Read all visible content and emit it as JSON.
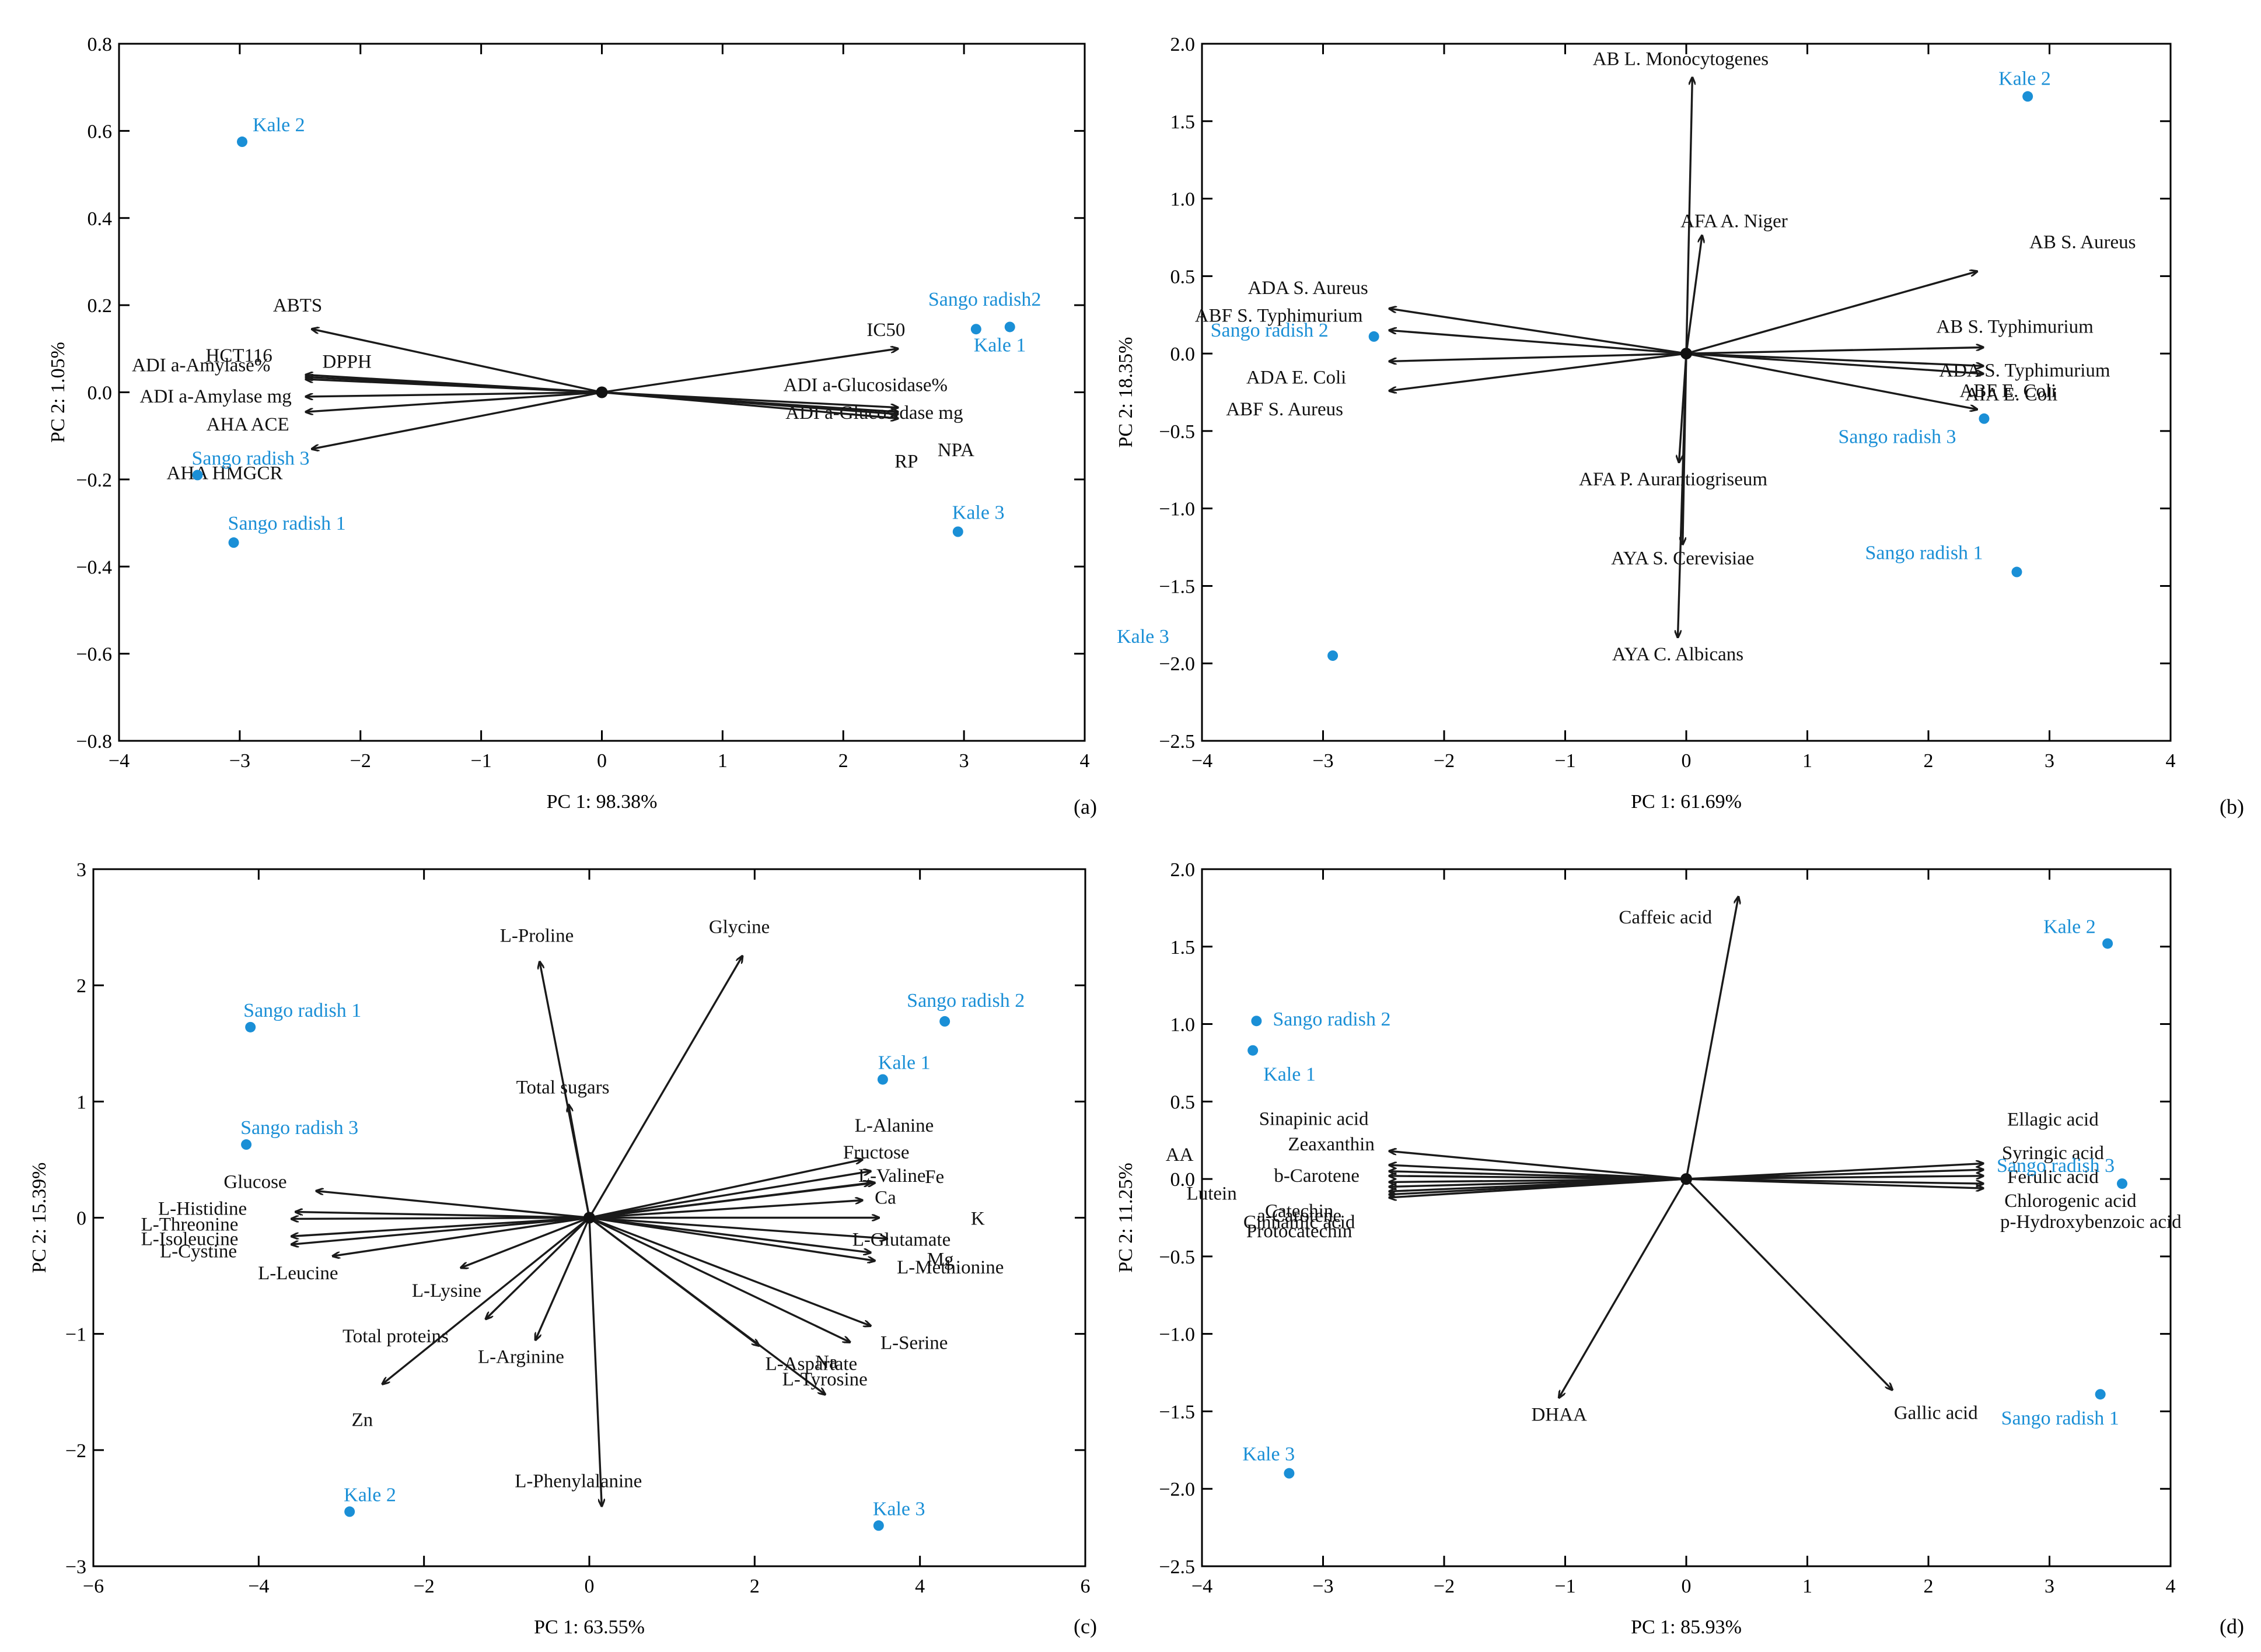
{
  "chart_data": [
    {
      "panel": "(a)",
      "type": "scatter",
      "xlabel": "PC 1: 98.38%",
      "ylabel": "PC 2: 1.05%",
      "xlim": [
        -4,
        4
      ],
      "ylim": [
        -0.8,
        0.8
      ],
      "xticks": [
        -4,
        -3,
        -2,
        -1,
        0,
        1,
        2,
        3,
        4
      ],
      "yticks": [
        -0.8,
        -0.6,
        -0.4,
        -0.2,
        0.0,
        0.2,
        0.4,
        0.6,
        0.8
      ],
      "xtick_labels": [
        "−4",
        "−3",
        "−2",
        "−1",
        "0",
        "1",
        "2",
        "3",
        "4"
      ],
      "ytick_labels": [
        "−0.8",
        "−0.6",
        "−0.4",
        "−0.2",
        "0.0",
        "0.2",
        "0.4",
        "0.6",
        "0.8"
      ],
      "points": [
        {
          "label": "Kale 2",
          "x": -2.98,
          "y": 0.575
        },
        {
          "label": "Sango radish2",
          "x": 3.1,
          "y": 0.145
        },
        {
          "label": "Kale 1",
          "x": 3.38,
          "y": 0.15
        },
        {
          "label": "Sango radish 3",
          "x": -3.35,
          "y": -0.19
        },
        {
          "label": "Sango radish 1",
          "x": -3.05,
          "y": -0.345
        },
        {
          "label": "Kale 3",
          "x": 2.95,
          "y": -0.32
        }
      ],
      "vectors": [
        {
          "label": "ABTS",
          "x": -2.4,
          "y": 0.145
        },
        {
          "label": "DPPH",
          "x": -2.45,
          "y": 0.04
        },
        {
          "label": "ADI a-Amylase%",
          "x": -2.45,
          "y": 0.035
        },
        {
          "label": "HCT116",
          "x": -2.45,
          "y": 0.03
        },
        {
          "label": "ADI a-Amylase mg",
          "x": -2.45,
          "y": -0.01
        },
        {
          "label": "AHA ACE",
          "x": -2.45,
          "y": -0.045
        },
        {
          "label": "AHA HMGCR",
          "x": -2.4,
          "y": -0.13
        },
        {
          "label": "IC50",
          "x": 2.45,
          "y": 0.1
        },
        {
          "label": "ADI a-Glucosidase%",
          "x": 2.45,
          "y": -0.035
        },
        {
          "label": "ADI a-Glucosidase mg",
          "x": 2.45,
          "y": -0.045
        },
        {
          "label": "RP",
          "x": 2.45,
          "y": -0.06
        },
        {
          "label": "NPA",
          "x": 2.45,
          "y": -0.05
        }
      ]
    },
    {
      "panel": "(b)",
      "type": "scatter",
      "xlabel": "PC 1: 61.69%",
      "ylabel": "PC 2: 18.35%",
      "xlim": [
        -4,
        4
      ],
      "ylim": [
        -2.5,
        2.0
      ],
      "xticks": [
        -4,
        -3,
        -2,
        -1,
        0,
        1,
        2,
        3,
        4
      ],
      "yticks": [
        -2.5,
        -2.0,
        -1.5,
        -1.0,
        -0.5,
        0.0,
        0.5,
        1.0,
        1.5,
        2.0
      ],
      "xtick_labels": [
        "−4",
        "−3",
        "−2",
        "−1",
        "0",
        "1",
        "2",
        "3",
        "4"
      ],
      "ytick_labels": [
        "−2.5",
        "−2.0",
        "−1.5",
        "−1.0",
        "−0.5",
        "0.0",
        "0.5",
        "1.0",
        "1.5",
        "2.0"
      ],
      "points": [
        {
          "label": "Kale 2",
          "x": 2.82,
          "y": 1.66
        },
        {
          "label": "Sango radish 2",
          "x": -2.58,
          "y": 0.11
        },
        {
          "label": "Sango radish 3",
          "x": 2.46,
          "y": -0.42
        },
        {
          "label": "Sango radish 1",
          "x": 2.73,
          "y": -1.41
        },
        {
          "label": "Kale 3",
          "x": -2.92,
          "y": -1.95
        }
      ],
      "vectors": [
        {
          "label": "AB L. Monocytogenes",
          "x": 0.05,
          "y": 1.78
        },
        {
          "label": "AFA A. Niger",
          "x": 0.13,
          "y": 0.76
        },
        {
          "label": "AB S. Aureus",
          "x": 2.4,
          "y": 0.53
        },
        {
          "label": "ADA S. Aureus",
          "x": -2.45,
          "y": 0.29
        },
        {
          "label": "ABF S. Typhimurium",
          "x": -2.45,
          "y": 0.15
        },
        {
          "label": "ADA E. Coli",
          "x": -2.45,
          "y": -0.05
        },
        {
          "label": "ABF S. Aureus",
          "x": -2.45,
          "y": -0.24
        },
        {
          "label": "AB S. Typhimurium",
          "x": 2.45,
          "y": 0.04
        },
        {
          "label": "ADA S. Typhimurium",
          "x": 2.45,
          "y": -0.08
        },
        {
          "label": "ABF E. Coli",
          "x": 2.45,
          "y": -0.13
        },
        {
          "label": "AIA E. Coli",
          "x": 2.4,
          "y": -0.36
        },
        {
          "label": "AFA P. Aurantiogriseum",
          "x": -0.06,
          "y": -0.7
        },
        {
          "label": "AYA S. Cerevisiae",
          "x": -0.03,
          "y": -1.23
        },
        {
          "label": "AYA C. Albicans",
          "x": -0.07,
          "y": -1.83
        }
      ]
    },
    {
      "panel": "(c)",
      "type": "scatter",
      "xlabel": "PC 1: 63.55%",
      "ylabel": "PC 2: 15.39%",
      "xlim": [
        -6,
        6
      ],
      "ylim": [
        -3,
        3
      ],
      "xticks": [
        -6,
        -4,
        -2,
        0,
        2,
        4,
        6
      ],
      "yticks": [
        -3,
        -2,
        -1,
        0,
        1,
        2,
        3
      ],
      "xtick_labels": [
        "−6",
        "−4",
        "−2",
        "0",
        "2",
        "4",
        "6"
      ],
      "ytick_labels": [
        "−3",
        "−2",
        "−1",
        "0",
        "1",
        "2",
        "3"
      ],
      "points": [
        {
          "label": "Sango radish 1",
          "x": -4.1,
          "y": 1.64
        },
        {
          "label": "Sango radish 2",
          "x": 4.3,
          "y": 1.69
        },
        {
          "label": "Kale 1",
          "x": 3.55,
          "y": 1.19
        },
        {
          "label": "Sango radish 3",
          "x": -4.15,
          "y": 0.63
        },
        {
          "label": "Kale 2",
          "x": -2.9,
          "y": -2.53
        },
        {
          "label": "Kale 3",
          "x": 3.5,
          "y": -2.65
        }
      ],
      "vectors": [
        {
          "label": "L-Proline",
          "x": -0.6,
          "y": 2.2
        },
        {
          "label": "Glycine",
          "x": 1.85,
          "y": 2.25
        },
        {
          "label": "Total sugars",
          "x": -0.25,
          "y": 0.97
        },
        {
          "label": "Glucose",
          "x": -3.3,
          "y": 0.23
        },
        {
          "label": "L-Histidine",
          "x": -3.55,
          "y": 0.05
        },
        {
          "label": "L-Threonine",
          "x": -3.6,
          "y": -0.01
        },
        {
          "label": "L-Isoleucine",
          "x": -3.6,
          "y": -0.16
        },
        {
          "label": "L-Cystine",
          "x": -3.6,
          "y": -0.23
        },
        {
          "label": "L-Leucine",
          "x": -3.1,
          "y": -0.33
        },
        {
          "label": "L-Lysine",
          "x": -1.55,
          "y": -0.43
        },
        {
          "label": "Total proteins",
          "x": -1.25,
          "y": -0.87
        },
        {
          "label": "Zn",
          "x": -2.5,
          "y": -1.43
        },
        {
          "label": "L-Arginine",
          "x": -0.65,
          "y": -1.05
        },
        {
          "label": "L-Phenylalanine",
          "x": 0.15,
          "y": -2.48
        },
        {
          "label": "L-Alanine",
          "x": 3.3,
          "y": 0.5
        },
        {
          "label": "Fructose",
          "x": 3.4,
          "y": 0.4
        },
        {
          "label": "Fe",
          "x": 3.4,
          "y": 0.3
        },
        {
          "label": "L-Valine",
          "x": 3.45,
          "y": 0.3
        },
        {
          "label": "Ca",
          "x": 3.3,
          "y": 0.15
        },
        {
          "label": "K",
          "x": 3.5,
          "y": 0.0
        },
        {
          "label": "L-Glutamate",
          "x": 3.6,
          "y": -0.18
        },
        {
          "label": "Mg",
          "x": 3.4,
          "y": -0.3
        },
        {
          "label": "L-Methionine",
          "x": 3.45,
          "y": -0.37
        },
        {
          "label": "L-Serine",
          "x": 3.4,
          "y": -0.93
        },
        {
          "label": "Na",
          "x": 3.15,
          "y": -1.07
        },
        {
          "label": "L-Aspartate",
          "x": 2.05,
          "y": -1.1
        },
        {
          "label": "L-Tyrosine",
          "x": 2.85,
          "y": -1.52
        }
      ]
    },
    {
      "panel": "(d)",
      "type": "scatter",
      "xlabel": "PC 1: 85.93%",
      "ylabel": "PC 2: 11.25%",
      "xlim": [
        -4,
        4
      ],
      "ylim": [
        -2.5,
        2.0
      ],
      "xticks": [
        -4,
        -3,
        -2,
        -1,
        0,
        1,
        2,
        3,
        4
      ],
      "yticks": [
        -2.5,
        -2.0,
        -1.5,
        -1.0,
        -0.5,
        0.0,
        0.5,
        1.0,
        1.5,
        2.0
      ],
      "xtick_labels": [
        "−4",
        "−3",
        "−2",
        "−1",
        "0",
        "1",
        "2",
        "3",
        "4"
      ],
      "ytick_labels": [
        "−2.5",
        "−2.0",
        "−1.5",
        "−1.0",
        "−0.5",
        "0.0",
        "0.5",
        "1.0",
        "1.5",
        "2.0"
      ],
      "points": [
        {
          "label": "Kale 2",
          "x": 3.48,
          "y": 1.52
        },
        {
          "label": "Sango radish 2",
          "x": -3.55,
          "y": 1.02
        },
        {
          "label": "Kale 1",
          "x": -3.58,
          "y": 0.83
        },
        {
          "label": "Sango radish 3",
          "x": 3.6,
          "y": -0.03
        },
        {
          "label": "Sango radish 1",
          "x": 3.42,
          "y": -1.39
        },
        {
          "label": "Kale 3",
          "x": -3.28,
          "y": -1.9
        }
      ],
      "vectors": [
        {
          "label": "Caffeic acid",
          "x": 0.43,
          "y": 1.82
        },
        {
          "label": "Sinapinic acid",
          "x": -2.45,
          "y": 0.18
        },
        {
          "label": "Zeaxanthin",
          "x": -2.45,
          "y": 0.09
        },
        {
          "label": "AA",
          "x": -2.45,
          "y": 0.05
        },
        {
          "label": "b-Carotene",
          "x": -2.45,
          "y": 0.02
        },
        {
          "label": "Lutein",
          "x": -2.45,
          "y": -0.02
        },
        {
          "label": "Catechin",
          "x": -2.45,
          "y": -0.05
        },
        {
          "label": "a-Carotene",
          "x": -2.45,
          "y": -0.08
        },
        {
          "label": "Cinnamic acid",
          "x": -2.45,
          "y": -0.1
        },
        {
          "label": "Protocatechin",
          "x": -2.45,
          "y": -0.12
        },
        {
          "label": "Ellagic acid",
          "x": 2.45,
          "y": 0.1
        },
        {
          "label": "Syringic acid",
          "x": 2.45,
          "y": 0.06
        },
        {
          "label": "Ferulic acid",
          "x": 2.45,
          "y": 0.02
        },
        {
          "label": "Chlorogenic acid",
          "x": 2.45,
          "y": -0.03
        },
        {
          "label": "p-Hydroxybenzoic acid",
          "x": 2.45,
          "y": -0.06
        },
        {
          "label": "DHAA",
          "x": -1.05,
          "y": -1.41
        },
        {
          "label": "Gallic acid",
          "x": 1.7,
          "y": -1.36
        }
      ]
    }
  ]
}
